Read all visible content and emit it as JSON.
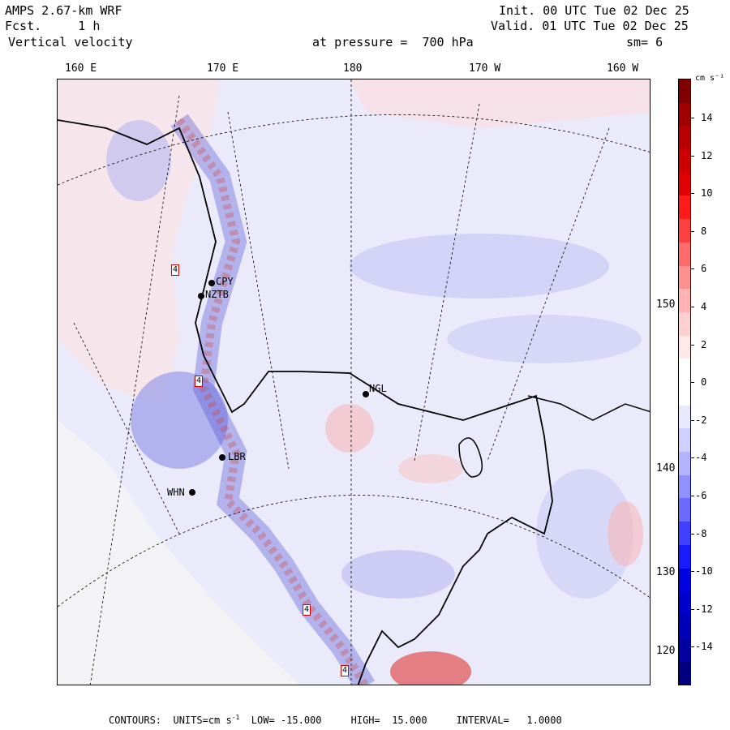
{
  "header": {
    "model": "AMPS 2.67-km WRF",
    "forecast": "Fcst.     1 h",
    "field": "Vertical velocity",
    "pressure": "at pressure =  700 hPa",
    "init": "Init. 00 UTC Tue 02 Dec 25",
    "valid": "Valid. 01 UTC Tue 02 Dec 25",
    "smooth": "sm= 6"
  },
  "longitude_labels": [
    "160 E",
    "170 E",
    "180",
    "170 W",
    "160 W"
  ],
  "latitude_labels": [
    "150 W",
    "140 W",
    "130 W",
    "120 W"
  ],
  "stations": [
    "CPY",
    "NZTB",
    "NGL",
    "LBR",
    "WHN"
  ],
  "contour_labels": [
    "4",
    "4",
    "4",
    "4"
  ],
  "colorbar": {
    "units": "cm s⁻¹",
    "labels": [
      "14",
      "12",
      "10",
      "8",
      "6",
      "4",
      "2",
      "0",
      "-2",
      "-4",
      "-6",
      "-8",
      "-10",
      "-12",
      "-14"
    ],
    "colors": [
      "#800000",
      "#a00000",
      "#b80000",
      "#cc0000",
      "#e00000",
      "#ff1a1a",
      "#ff4040",
      "#ff6a6a",
      "#ff9090",
      "#ffb3b3",
      "#ffd0d0",
      "#ffe8e8",
      "#ffffff",
      "#ffffff",
      "#e8e8ff",
      "#d0d0ff",
      "#b3b3ff",
      "#9090ff",
      "#6a6aff",
      "#4040ff",
      "#1a1aff",
      "#0000e0",
      "#0000cc",
      "#0000b8",
      "#0000a0",
      "#000080"
    ]
  },
  "footer": {
    "prefix": "CONTOURS:  UNITS=cm s",
    "sup": "-1",
    "rest": "  LOW= -15.000     HIGH=  15.000     INTERVAL=   1.0000"
  }
}
